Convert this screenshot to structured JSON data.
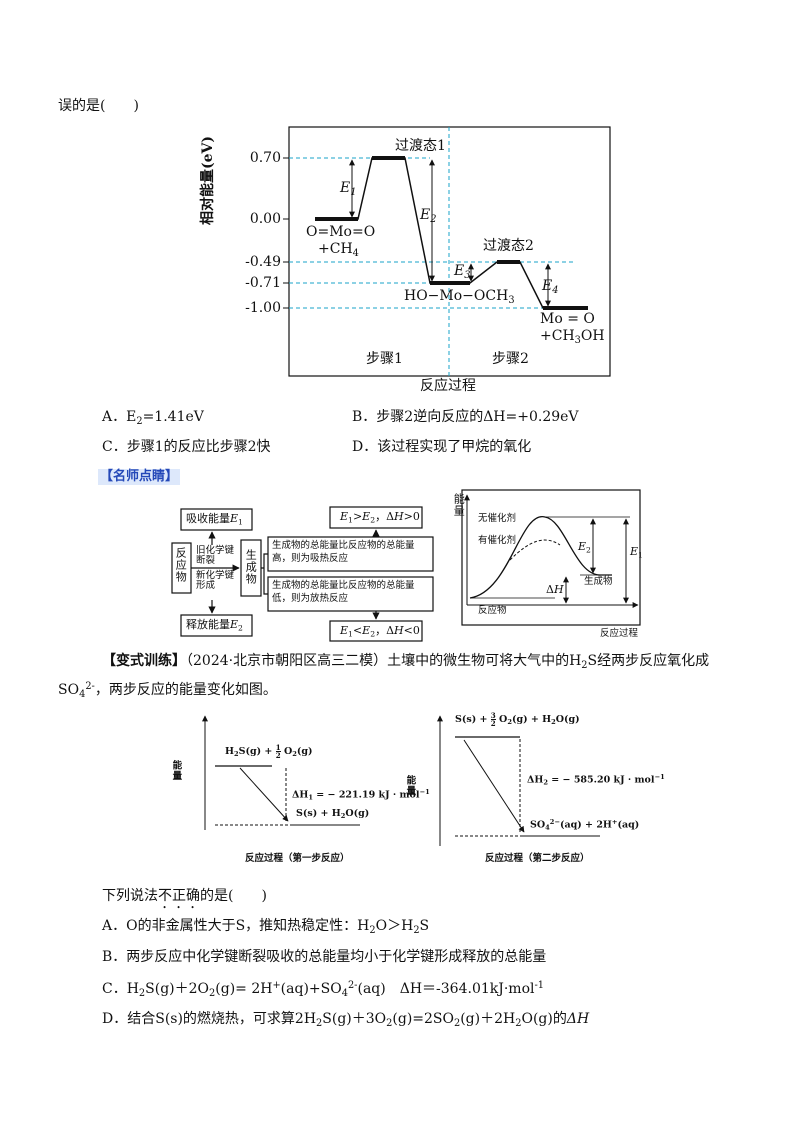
{
  "intro": [
    "误的是(　　)"
  ],
  "fig1": {
    "y_label": [
      "相对能量(eV)"
    ],
    "x_label": [
      "反应过程"
    ],
    "ticks": [
      [
        "0.70"
      ],
      [
        "0.00"
      ],
      [
        "-0.49"
      ],
      [
        "-0.71"
      ],
      [
        "-1.00"
      ]
    ],
    "ts1": [
      "过渡态1"
    ],
    "ts2": [
      "过渡态2"
    ],
    "e1": [
      "E",
      {
        "sub": "1"
      }
    ],
    "e2": [
      "E",
      {
        "sub": "2"
      }
    ],
    "e3": [
      "E",
      {
        "sub": "3"
      }
    ],
    "e4": [
      "E",
      {
        "sub": "4"
      }
    ],
    "reactant": [
      "O=Mo=O"
    ],
    "reactant2": [
      "+CH",
      {
        "sub": "4"
      }
    ],
    "intermediate": [
      "HO−Mo−OCH",
      {
        "sub": "3"
      }
    ],
    "product": [
      "Mo = O"
    ],
    "product2": [
      "+CH",
      {
        "sub": "3"
      },
      "OH"
    ],
    "step1": [
      "步骤1"
    ],
    "step2": [
      "步骤2"
    ]
  },
  "options1": [
    [
      "A．E",
      {
        "sub": "2"
      },
      "=1.41eV"
    ],
    [
      "B．步骤2逆向反应的ΔH=+0.29eV"
    ],
    [
      "C．步骤1的反应比步骤2快"
    ],
    [
      "D．该过程实现了甲烷的氧化"
    ]
  ],
  "tip_heading": [
    "【名师点睛】"
  ],
  "flow": {
    "absorb": [
      "吸收能量",
      {
        "i": "E"
      },
      {
        "sub": "1"
      }
    ],
    "reactants": [
      "反应物"
    ],
    "break": [
      "旧化学键断裂"
    ],
    "form": [
      "新化学键形成"
    ],
    "products": [
      "生成物"
    ],
    "high": [
      "生成物的总能量比反应物的总能量高，则为吸热反应"
    ],
    "low": [
      "生成物的总能量比反应物的总能量低，则为放热反应"
    ],
    "release": [
      "释放能量",
      {
        "i": "E"
      },
      {
        "sub": "2"
      }
    ],
    "cond1": [
      {
        "i": "E"
      },
      {
        "sub": "1"
      },
      ">",
      {
        "i": "E"
      },
      {
        "sub": "2"
      },
      "，Δ",
      {
        "i": "H"
      },
      ">0"
    ],
    "cond2": [
      {
        "i": "E"
      },
      {
        "sub": "1"
      },
      "<",
      {
        "i": "E"
      },
      {
        "sub": "2"
      },
      "，Δ",
      {
        "i": "H"
      },
      "<0"
    ]
  },
  "curve": {
    "y_label": [
      "能量"
    ],
    "uncat": [
      "无催化剂"
    ],
    "cat": [
      "有催化剂"
    ],
    "e2": [
      {
        "i": "E"
      },
      {
        "sub": "2"
      }
    ],
    "e1": [
      {
        "i": "E"
      },
      {
        "sub": "1"
      }
    ],
    "dh": [
      "Δ",
      {
        "i": "H"
      }
    ],
    "products": [
      "生成物"
    ],
    "reactants": [
      "反应物"
    ],
    "x_label": [
      "反应过程"
    ]
  },
  "variant": {
    "line1": [
      {
        "b": "【变式训练】"
      },
      "（2024·北京市朝阳区高三二模）土壤中的微生物可将大气中的H",
      {
        "sub": "2"
      },
      "S经两步反应氧化成"
    ],
    "line2": [
      "SO",
      {
        "sub": "4"
      },
      {
        "sup": "2-"
      },
      "，两步反应的能量变化如图。"
    ]
  },
  "step_fig1": {
    "y_label": [
      "能量"
    ],
    "top": [
      "H",
      {
        "sub": "2"
      },
      "S(g) + ",
      {
        "frac": [
          "1",
          "2"
        ]
      },
      " O",
      {
        "sub": "2"
      },
      "(g)"
    ],
    "dh": [
      "ΔH",
      {
        "sub": "1"
      },
      " = − 221.19 kJ · mol",
      {
        "sup": "−1"
      }
    ],
    "bottom": [
      "S(s) + H",
      {
        "sub": "2"
      },
      "O(g)"
    ],
    "caption": [
      "反应过程（第一步反应）"
    ]
  },
  "step_fig2": {
    "y_label": [
      "能量"
    ],
    "top": [
      "S(s) + ",
      {
        "frac": [
          "3",
          "2"
        ]
      },
      " O",
      {
        "sub": "2"
      },
      "(g) + H",
      {
        "sub": "2"
      },
      "O(g)"
    ],
    "dh": [
      "ΔH",
      {
        "sub": "2"
      },
      " = − 585.20 kJ · mol",
      {
        "sup": "−1"
      }
    ],
    "bottom": [
      "SO",
      {
        "sub": "4"
      },
      {
        "sup": "2−"
      },
      "(aq) + 2H",
      {
        "sup": "+"
      },
      "(aq)"
    ],
    "caption": [
      "反应过程（第二步反应）"
    ]
  },
  "question": [
    "下列说法",
    {
      "em": "不正确"
    },
    "的是(　　)"
  ],
  "options2": [
    [
      "A．O的非金属性大于S，推知热稳定性：H",
      {
        "sub": "2"
      },
      "O＞H",
      {
        "sub": "2"
      },
      "S"
    ],
    [
      "B．两步反应中化学键断裂吸收的总能量均小于化学键形成释放的总能量"
    ],
    [
      "C．H",
      {
        "sub": "2"
      },
      "S(g)＋2O",
      {
        "sub": "2"
      },
      "(g)= 2H",
      {
        "sup": "+"
      },
      "(aq)+SO",
      {
        "sub": "4"
      },
      {
        "sup": "2-"
      },
      "(aq)　ΔH＝-364.01kJ·mol",
      {
        "sup": "-1"
      }
    ],
    [
      "D．结合S(s)的燃烧热，可求算2H",
      {
        "sub": "2"
      },
      "S(g)＋3O",
      {
        "sub": "2"
      },
      "(g)=2SO",
      {
        "sub": "2"
      },
      "(g)＋2H",
      {
        "sub": "2"
      },
      "O(g)的",
      {
        "i": "ΔH"
      }
    ]
  ]
}
